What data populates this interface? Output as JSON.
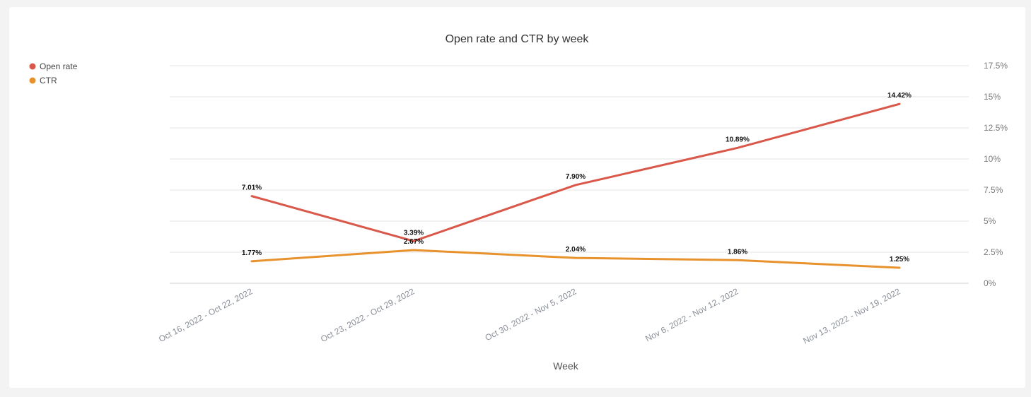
{
  "chart_data": {
    "type": "line",
    "title": "Open rate and CTR by week",
    "xlabel": "Week",
    "ylabel": "",
    "categories": [
      "Oct 16, 2022 - Oct 22, 2022",
      "Oct 23, 2022 - Oct 29, 2022",
      "Oct 30, 2022 - Nov 5, 2022",
      "Nov 6, 2022 - Nov 12, 2022",
      "Nov 13, 2022 - Nov 19, 2022"
    ],
    "series": [
      {
        "name": "Open rate",
        "color": "#d9584a",
        "values": [
          7.01,
          3.39,
          7.9,
          10.89,
          14.42
        ],
        "labels": [
          "7.01%",
          "3.39%",
          "7.90%",
          "10.89%",
          "14.42%"
        ]
      },
      {
        "name": "CTR",
        "color": "#e8922e",
        "values": [
          1.77,
          2.67,
          2.04,
          1.86,
          1.25
        ],
        "labels": [
          "1.77%",
          "2.67%",
          "2.04%",
          "1.86%",
          "1.25%"
        ]
      }
    ],
    "ylim": [
      0,
      17.5
    ],
    "yticks": [
      0,
      2.5,
      5,
      7.5,
      10,
      12.5,
      15,
      17.5
    ],
    "ytick_labels": [
      "0%",
      "2.5%",
      "5%",
      "7.5%",
      "10%",
      "12.5%",
      "15%",
      "17.5%"
    ],
    "y_axis_side": "right",
    "grid": true,
    "legend_position": "top-left"
  }
}
